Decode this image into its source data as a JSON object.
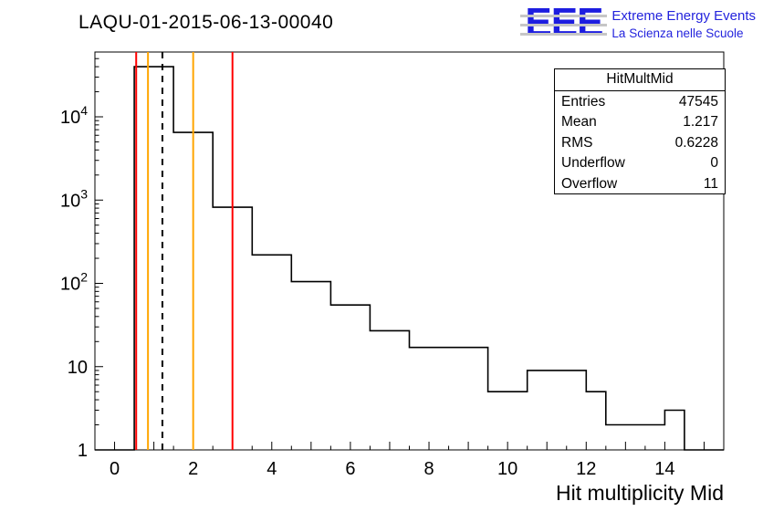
{
  "title": "LAQU-01-2015-06-13-00040",
  "logo": {
    "acronym": "EEE",
    "line1": "Extreme Energy Events",
    "line2": "La Scienza nelle Scuole",
    "color": "#1d1de0"
  },
  "stats": {
    "title": "HitMultMid",
    "rows": [
      {
        "label": "Entries",
        "value": "47545"
      },
      {
        "label": "Mean",
        "value": "1.217"
      },
      {
        "label": "RMS",
        "value": "0.6228"
      },
      {
        "label": "Underflow",
        "value": "0"
      },
      {
        "label": "Overflow",
        "value": "11"
      }
    ]
  },
  "chart_data": {
    "type": "bar",
    "subtype": "step-histogram",
    "title": "LAQU-01-2015-06-13-00040",
    "xlabel": "Hit multiplicity Mid",
    "ylabel": "",
    "x_range": [
      -0.5,
      15.5
    ],
    "y_range": [
      1,
      60000
    ],
    "y_scale": "log",
    "grid": false,
    "line_color": "#000000",
    "x_start": 0,
    "bin_width": 0.5,
    "counts": [
      0,
      40000,
      40000,
      6500,
      6500,
      820,
      820,
      220,
      220,
      105,
      105,
      55,
      55,
      27,
      27,
      17,
      17,
      17,
      17,
      5,
      5,
      9,
      9,
      9,
      5,
      2,
      2,
      2,
      3,
      0,
      0
    ],
    "xticks": {
      "labels": [
        0,
        2,
        4,
        6,
        8,
        10,
        12,
        14
      ],
      "major_every": 1,
      "minor_every": 0.5
    },
    "yticks": [
      {
        "value": 1,
        "label": "1"
      },
      {
        "value": 10,
        "label": "10"
      },
      {
        "value": 100,
        "label": "10",
        "exp": "2"
      },
      {
        "value": 1000,
        "label": "10",
        "exp": "3"
      },
      {
        "value": 10000,
        "label": "10",
        "exp": "4"
      }
    ],
    "markers": [
      {
        "x": 0.55,
        "color": "#ff0000",
        "style": "solid",
        "name": "red-threshold-low"
      },
      {
        "x": 0.85,
        "color": "#ffa500",
        "style": "solid",
        "name": "orange-threshold-low"
      },
      {
        "x": 1.217,
        "color": "#000000",
        "style": "dashed",
        "name": "mean-line"
      },
      {
        "x": 2.0,
        "color": "#ffa500",
        "style": "solid",
        "name": "orange-threshold-high"
      },
      {
        "x": 3.0,
        "color": "#ff0000",
        "style": "solid",
        "name": "red-threshold-high"
      }
    ]
  }
}
